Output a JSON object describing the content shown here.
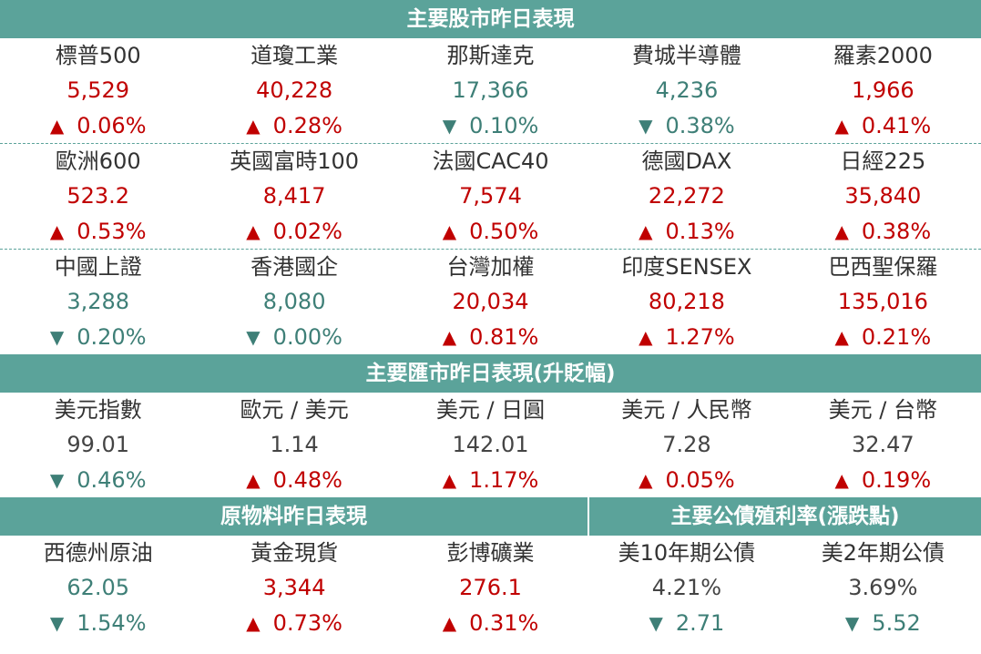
{
  "stocks": {
    "title": "主要股市昨日表現",
    "rows": [
      [
        {
          "name": "標普500",
          "value": "5,529",
          "dir": "up",
          "arrow": "▲",
          "change": "0.06%"
        },
        {
          "name": "道瓊工業",
          "value": "40,228",
          "dir": "up",
          "arrow": "▲",
          "change": "0.28%"
        },
        {
          "name": "那斯達克",
          "value": "17,366",
          "dir": "down",
          "arrow": "▼",
          "change": "0.10%"
        },
        {
          "name": "費城半導體",
          "value": "4,236",
          "dir": "down",
          "arrow": "▼",
          "change": "0.38%"
        },
        {
          "name": "羅素2000",
          "value": "1,966",
          "dir": "up",
          "arrow": "▲",
          "change": "0.41%"
        }
      ],
      [
        {
          "name": "歐洲600",
          "value": "523.2",
          "dir": "up",
          "arrow": "▲",
          "change": "0.53%"
        },
        {
          "name": "英國富時100",
          "value": "8,417",
          "dir": "up",
          "arrow": "▲",
          "change": "0.02%"
        },
        {
          "name": "法國CAC40",
          "value": "7,574",
          "dir": "up",
          "arrow": "▲",
          "change": "0.50%"
        },
        {
          "name": "德國DAX",
          "value": "22,272",
          "dir": "up",
          "arrow": "▲",
          "change": "0.13%"
        },
        {
          "name": "日經225",
          "value": "35,840",
          "dir": "up",
          "arrow": "▲",
          "change": "0.38%"
        }
      ],
      [
        {
          "name": "中國上證",
          "value": "3,288",
          "dir": "down",
          "arrow": "▼",
          "change": "0.20%"
        },
        {
          "name": "香港國企",
          "value": "8,080",
          "dir": "down",
          "arrow": "▼",
          "change": "0.00%"
        },
        {
          "name": "台灣加權",
          "value": "20,034",
          "dir": "up",
          "arrow": "▲",
          "change": "0.81%"
        },
        {
          "name": "印度SENSEX",
          "value": "80,218",
          "dir": "up",
          "arrow": "▲",
          "change": "1.27%"
        },
        {
          "name": "巴西聖保羅",
          "value": "135,016",
          "dir": "up",
          "arrow": "▲",
          "change": "0.21%"
        }
      ]
    ]
  },
  "fx": {
    "title": "主要匯市昨日表現(升貶幅)",
    "items": [
      {
        "name": "美元指數",
        "value": "99.01",
        "dir": "down",
        "arrow": "▼",
        "change": "0.46%"
      },
      {
        "name": "歐元 / 美元",
        "value": "1.14",
        "dir": "up",
        "arrow": "▲",
        "change": "0.48%"
      },
      {
        "name": "美元 / 日圓",
        "value": "142.01",
        "dir": "up",
        "arrow": "▲",
        "change": "1.17%"
      },
      {
        "name": "美元 / 人民幣",
        "value": "7.28",
        "dir": "up",
        "arrow": "▲",
        "change": "0.05%"
      },
      {
        "name": "美元 / 台幣",
        "value": "32.47",
        "dir": "up",
        "arrow": "▲",
        "change": "0.19%"
      }
    ]
  },
  "commodities": {
    "title": "原物料昨日表現",
    "items": [
      {
        "name": "西德州原油",
        "value": "62.05",
        "dir": "down",
        "arrow": "▼",
        "change": "1.54%"
      },
      {
        "name": "黃金現貨",
        "value": "3,344",
        "dir": "up",
        "arrow": "▲",
        "change": "0.73%"
      },
      {
        "name": "彭博礦業",
        "value": "276.1",
        "dir": "up",
        "arrow": "▲",
        "change": "0.31%"
      }
    ]
  },
  "bonds": {
    "title": "主要公債殖利率(漲跌點)",
    "items": [
      {
        "name": "美10年期公債",
        "value": "4.21%",
        "dir": "down",
        "arrow": "▼",
        "change": "2.71"
      },
      {
        "name": "美2年期公債",
        "value": "3.69%",
        "dir": "down",
        "arrow": "▼",
        "change": "5.52"
      }
    ]
  },
  "colors": {
    "header_bg": "#5ba39a",
    "up": "#c00000",
    "down": "#3e7f77",
    "neutral_value": "#444444"
  }
}
